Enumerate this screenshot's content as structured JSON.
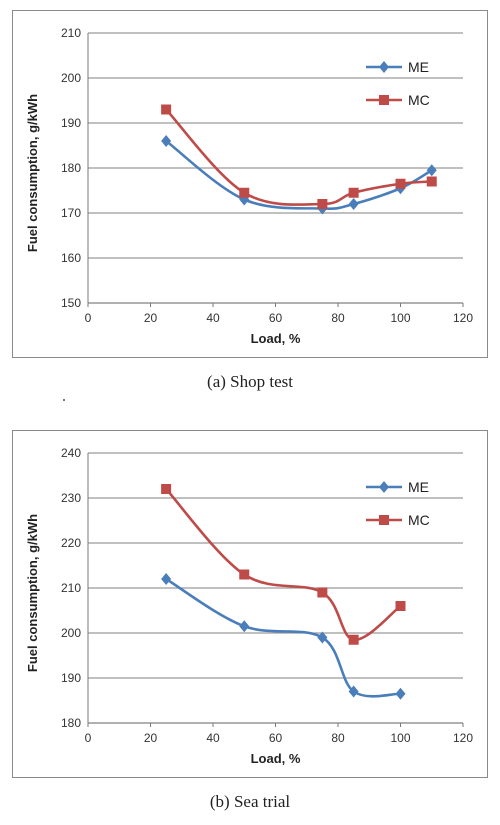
{
  "chart_data": [
    {
      "type": "line",
      "caption": "(a)  Shop  test",
      "xlabel": "Load, %",
      "ylabel": "Fuel consumption, g/kWh",
      "xlim": [
        0,
        120
      ],
      "ylim": [
        150,
        210
      ],
      "xticks": [
        0,
        20,
        40,
        60,
        80,
        100,
        120
      ],
      "yticks": [
        150,
        160,
        170,
        180,
        190,
        200,
        210
      ],
      "grid": "horizontal",
      "legend_position": "top-right",
      "series": [
        {
          "name": "ME",
          "color": "#4a7ebb",
          "marker": "diamond",
          "x": [
            25,
            50,
            75,
            85,
            100,
            110
          ],
          "y": [
            186,
            173,
            171,
            172,
            175.5,
            179.5
          ]
        },
        {
          "name": "MC",
          "color": "#be4b48",
          "marker": "square",
          "x": [
            25,
            50,
            75,
            85,
            100,
            110
          ],
          "y": [
            193,
            174.5,
            172,
            174.5,
            176.5,
            177
          ]
        }
      ]
    },
    {
      "type": "line",
      "caption": "(b)  Sea  trial",
      "xlabel": "Load, %",
      "ylabel": "Fuel consumption, g/kWh",
      "xlim": [
        0,
        120
      ],
      "ylim": [
        180,
        240
      ],
      "xticks": [
        0,
        20,
        40,
        60,
        80,
        100,
        120
      ],
      "yticks": [
        180,
        190,
        200,
        210,
        220,
        230,
        240
      ],
      "grid": "horizontal",
      "legend_position": "top-right",
      "series": [
        {
          "name": "ME",
          "color": "#4a7ebb",
          "marker": "diamond",
          "x": [
            25,
            50,
            75,
            85,
            100
          ],
          "y": [
            212,
            201.5,
            199,
            187,
            186.5
          ]
        },
        {
          "name": "MC",
          "color": "#be4b48",
          "marker": "square",
          "x": [
            25,
            50,
            75,
            85,
            100
          ],
          "y": [
            232,
            213,
            209,
            198.5,
            206
          ]
        }
      ]
    }
  ]
}
